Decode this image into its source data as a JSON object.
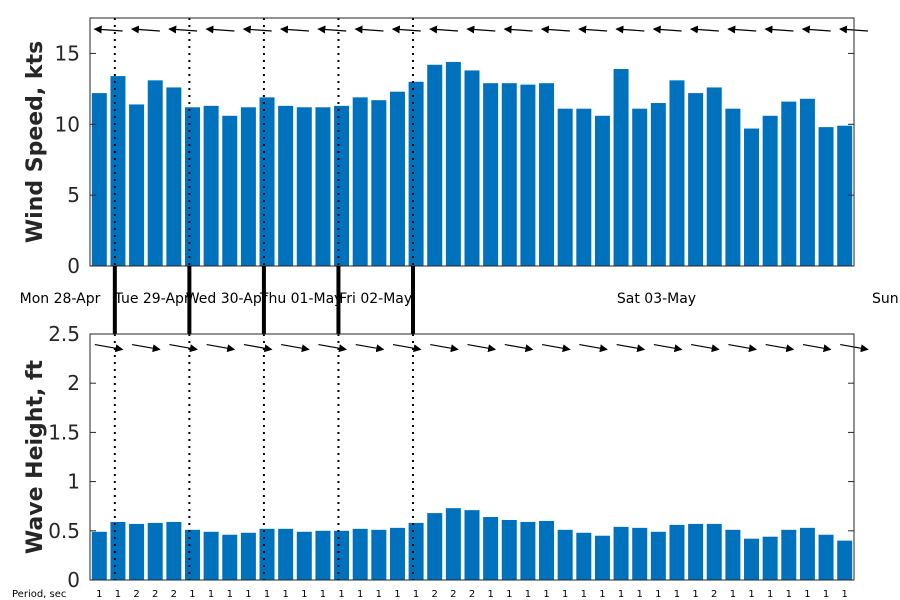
{
  "colors": {
    "bar": "#0072BD",
    "axis": "#262626"
  },
  "chart_data": [
    {
      "type": "bar",
      "ylabel": "Wind Speed, kts",
      "ylim": [
        0,
        17.5
      ],
      "yticks": [
        "0",
        "5",
        "10",
        "15"
      ],
      "yticks_values": [
        0,
        5,
        10,
        15
      ],
      "values": [
        12.2,
        13.4,
        11.4,
        13.1,
        12.6,
        11.2,
        11.3,
        10.6,
        11.2,
        11.9,
        11.3,
        11.2,
        11.2,
        11.3,
        11.9,
        11.7,
        12.3,
        13.0,
        14.2,
        14.4,
        13.8,
        12.9,
        12.9,
        12.8,
        12.9,
        11.1,
        11.1,
        10.6,
        13.9,
        11.1,
        11.5,
        13.1,
        12.2,
        12.6,
        11.1,
        9.7,
        10.6,
        11.6,
        11.8,
        9.8,
        9.9
      ],
      "arrow_direction": "west-northwest"
    },
    {
      "type": "bar",
      "ylabel": "Wave Height, ft",
      "ylim": [
        0,
        2.5
      ],
      "yticks": [
        "0",
        "0.5",
        "1",
        "1.5",
        "2",
        "2.5"
      ],
      "yticks_values": [
        0,
        0.5,
        1,
        1.5,
        2,
        2.5
      ],
      "values": [
        0.49,
        0.59,
        0.57,
        0.58,
        0.59,
        0.51,
        0.49,
        0.46,
        0.48,
        0.52,
        0.52,
        0.49,
        0.5,
        0.5,
        0.52,
        0.51,
        0.53,
        0.58,
        0.68,
        0.73,
        0.71,
        0.64,
        0.61,
        0.59,
        0.6,
        0.51,
        0.48,
        0.45,
        0.54,
        0.53,
        0.49,
        0.56,
        0.57,
        0.57,
        0.51,
        0.42,
        0.44,
        0.51,
        0.53,
        0.46,
        0.4
      ],
      "period_label": "Period, sec",
      "periods": [
        "1",
        "1",
        "2",
        "2",
        "2",
        "1",
        "1",
        "1",
        "1",
        "1",
        "1",
        "1",
        "1",
        "1",
        "1",
        "1",
        "1",
        "1",
        "2",
        "2",
        "2",
        "1",
        "1",
        "1",
        "1",
        "1",
        "1",
        "1",
        "1",
        "1",
        "1",
        "1",
        "1",
        "2",
        "1",
        "1",
        "1",
        "1",
        "1",
        "1",
        "1"
      ],
      "arrow_direction": "east-southeast"
    }
  ],
  "days": [
    {
      "label": "Mon 28-Apr"
    },
    {
      "label": "Tue 29-Apr"
    },
    {
      "label": "Wed 30-Apr"
    },
    {
      "label": "Thu 01-May"
    },
    {
      "label": "Fri 02-May"
    },
    {
      "label": "Sat 03-May"
    },
    {
      "label": "Sun"
    }
  ],
  "day_boundaries_index": [
    0.833,
    4.833,
    8.833,
    12.833,
    16.833
  ]
}
